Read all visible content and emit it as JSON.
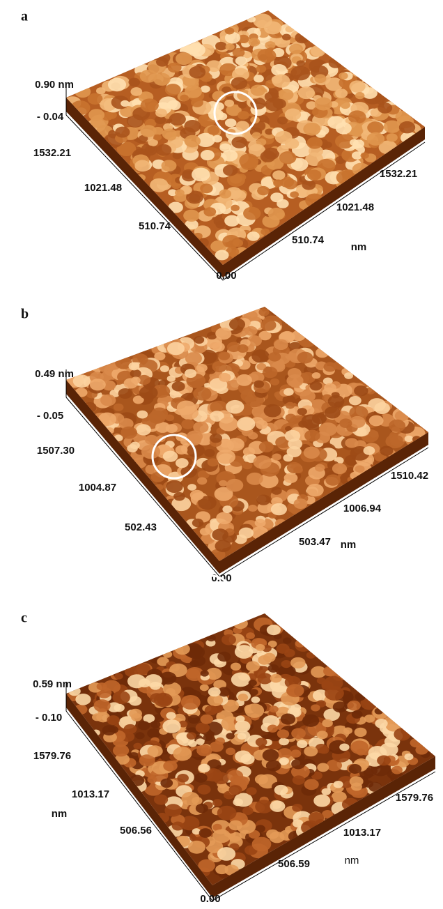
{
  "panels": [
    {
      "label": "a",
      "z_labels": [
        "0.90 nm",
        "- 0.04"
      ],
      "left_labels": [
        "1532.21",
        "1021.48",
        "510.74"
      ],
      "right_labels": [
        "1532.21",
        "1021.48",
        "510.74"
      ],
      "right_unit": "nm",
      "origin": "0.00"
    },
    {
      "label": "b",
      "z_labels": [
        "0.49 nm",
        "- 0.05"
      ],
      "left_labels": [
        "1507.30",
        "1004.87",
        "502.43"
      ],
      "right_labels": [
        "1510.42",
        "1006.94",
        "503.47"
      ],
      "right_unit": "nm",
      "origin": "0.00"
    },
    {
      "label": "c",
      "z_labels": [
        "0.59 nm",
        "- 0.10"
      ],
      "left_labels": [
        "1579.76",
        "1013.17",
        "506.56"
      ],
      "left_unit": "nm",
      "right_labels": [
        "1579.76",
        "1013.17",
        "506.59"
      ],
      "right_unit": "nm",
      "origin": "0.00"
    }
  ]
}
